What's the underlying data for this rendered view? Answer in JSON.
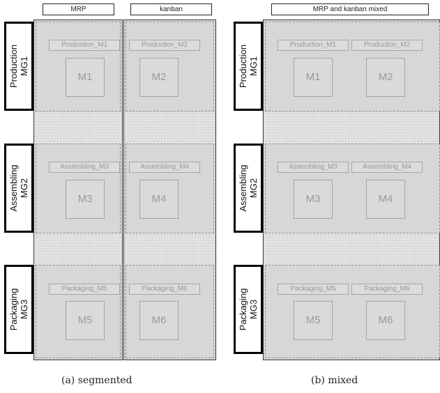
{
  "panel_a": {
    "headers": [
      "MRP",
      "kanban"
    ],
    "groups": [
      {
        "line1": "Production",
        "line2": "MG1"
      },
      {
        "line1": "Assembling",
        "line2": "MG2"
      },
      {
        "line1": "Packaging",
        "line2": "MG3"
      }
    ],
    "stations": [
      {
        "left": "Production_M1",
        "right": "Production_M2",
        "m_left": "M1",
        "m_right": "M2"
      },
      {
        "left": "Assembling_M3",
        "right": "Assembling_M4",
        "m_left": "M3",
        "m_right": "M4"
      },
      {
        "left": "Packaging_M5",
        "right": "Packaging_M6",
        "m_left": "M5",
        "m_right": "M6"
      }
    ],
    "caption": "(a) segmented"
  },
  "panel_b": {
    "header": "MRP and kanban mixed",
    "groups": [
      {
        "line1": "Production",
        "line2": "MG1"
      },
      {
        "line1": "Assembling",
        "line2": "MG2"
      },
      {
        "line1": "Packaging",
        "line2": "MG3"
      }
    ],
    "stations": [
      {
        "left": "Production_M1",
        "right": "Production_M2",
        "m_left": "M1",
        "m_right": "M2"
      },
      {
        "left": "Assembling_M3",
        "right": "Assembling_M4",
        "m_left": "M3",
        "m_right": "M4"
      },
      {
        "left": "Packaging_M5",
        "right": "Packaging_M6",
        "m_left": "M5",
        "m_right": "M6"
      }
    ],
    "caption": "(b) mixed"
  }
}
